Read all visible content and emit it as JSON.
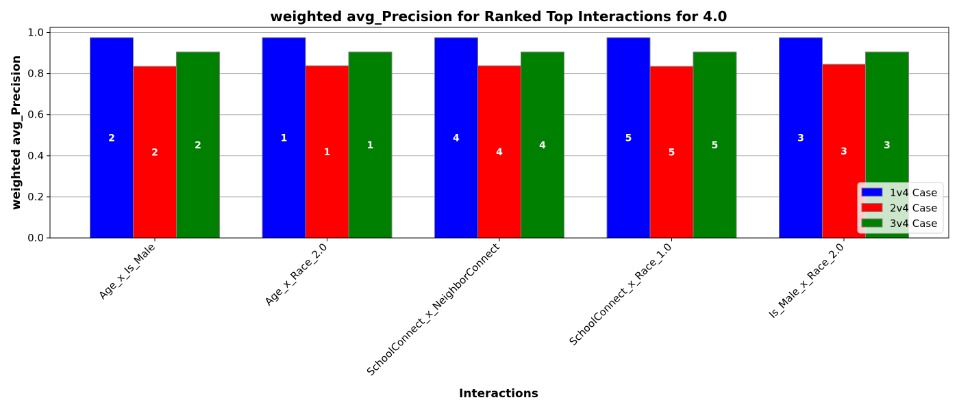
{
  "chart_data": {
    "type": "bar",
    "title": "weighted avg_Precision for Ranked Top Interactions for 4.0",
    "xlabel": "Interactions",
    "ylabel": "weighted avg_Precision",
    "categories": [
      "Age_x_Is_Male",
      "Age_x_Race_2.0",
      "SchoolConnect_x_NeighborConnect",
      "SchoolConnect_x_Race_1.0",
      "Is_Male_x_Race_2.0"
    ],
    "series": [
      {
        "name": "1v4 Case",
        "color": "#0000ff",
        "values": [
          0.975,
          0.975,
          0.975,
          0.975,
          0.975
        ],
        "ranks": [
          "2",
          "1",
          "4",
          "5",
          "3"
        ]
      },
      {
        "name": "2v4 Case",
        "color": "#ff0000",
        "values": [
          0.835,
          0.838,
          0.838,
          0.835,
          0.845
        ],
        "ranks": [
          "2",
          "1",
          "4",
          "5",
          "3"
        ]
      },
      {
        "name": "3v4 Case",
        "color": "#008000",
        "values": [
          0.905,
          0.905,
          0.905,
          0.905,
          0.905
        ],
        "ranks": [
          "2",
          "1",
          "4",
          "5",
          "3"
        ]
      }
    ],
    "ylim": [
      0,
      1.025
    ],
    "yticks": [
      "0.0",
      "0.2",
      "0.4",
      "0.6",
      "0.8",
      "1.0"
    ],
    "grid": "y-major",
    "legend_position": "lower-right"
  }
}
